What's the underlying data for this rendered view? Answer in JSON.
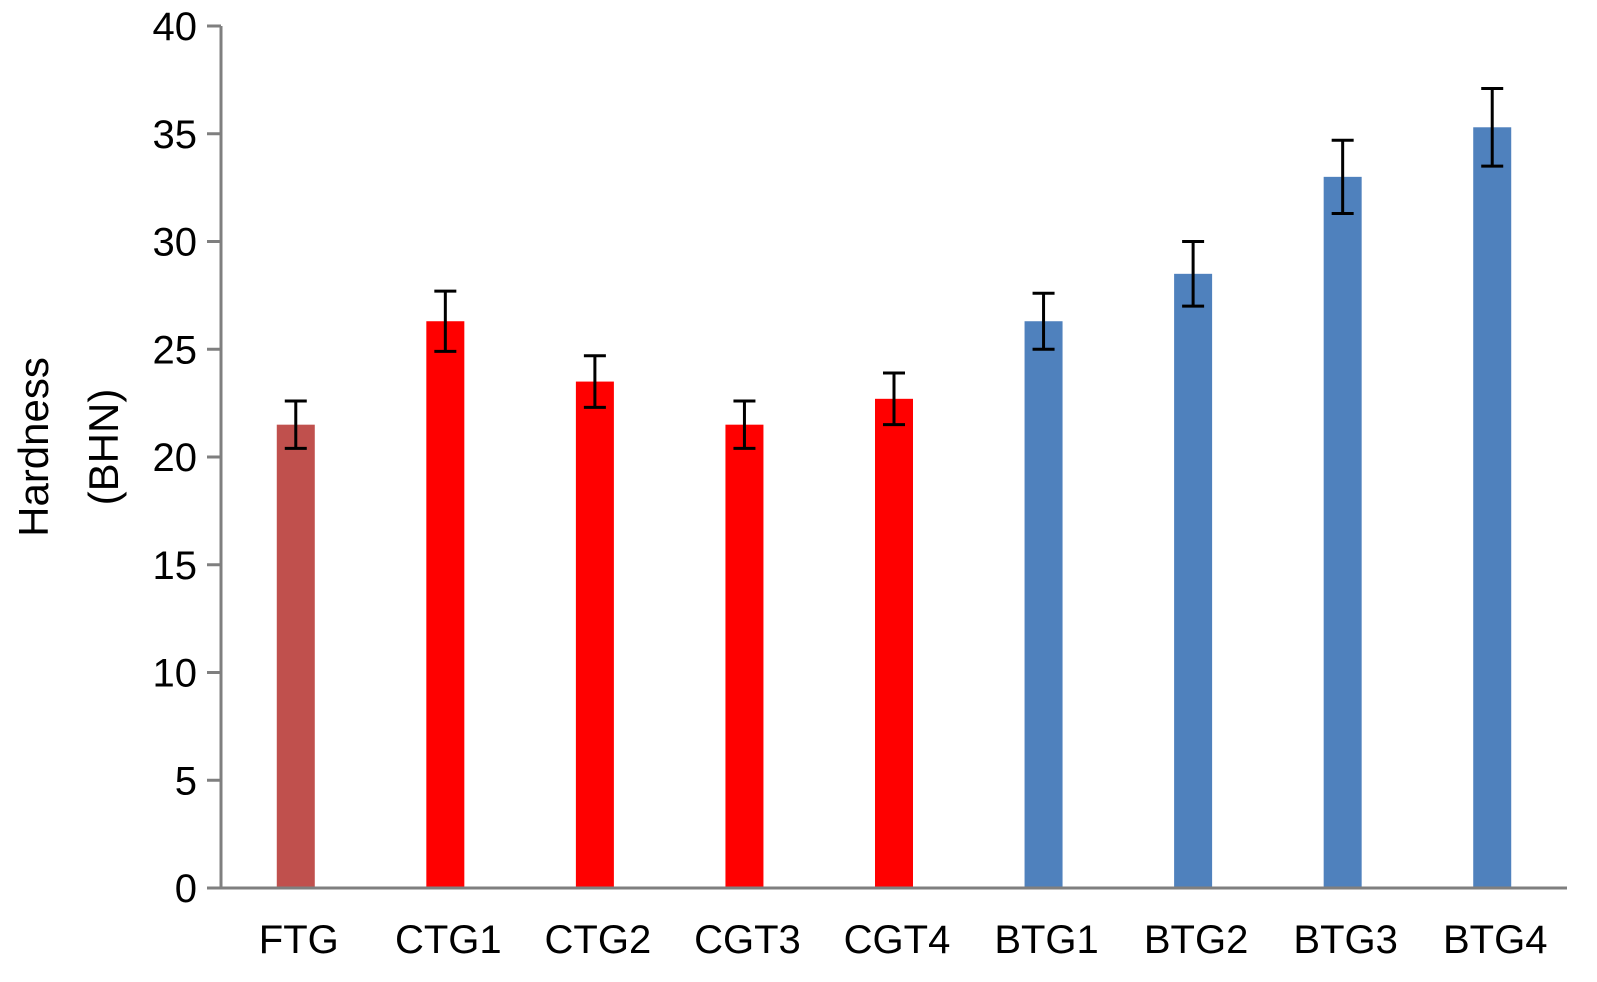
{
  "chart_data": {
    "type": "bar",
    "title": "",
    "xlabel": "",
    "ylabel": [
      "Hardness",
      "(BHN)"
    ],
    "ylim": [
      0,
      40
    ],
    "yticks": [
      0,
      5,
      10,
      15,
      20,
      25,
      30,
      35,
      40
    ],
    "grid": false,
    "legend": "none",
    "categories": [
      "FTG",
      "CTG1",
      "CTG2",
      "CGT3",
      "CGT4",
      "BTG1",
      "BTG2",
      "BTG3",
      "BTG4"
    ],
    "values": [
      21.5,
      26.3,
      23.5,
      21.5,
      22.7,
      26.3,
      28.5,
      33.0,
      35.3
    ],
    "errors": [
      1.1,
      1.4,
      1.2,
      1.1,
      1.2,
      1.3,
      1.5,
      1.7,
      1.8
    ],
    "bar_colors": [
      "#c0504d",
      "#ff0000",
      "#ff0000",
      "#ff0000",
      "#ff0000",
      "#4f81bd",
      "#4f81bd",
      "#4f81bd",
      "#4f81bd"
    ],
    "axis_color": "#7f7f7f",
    "error_bar_color": "#000000"
  }
}
